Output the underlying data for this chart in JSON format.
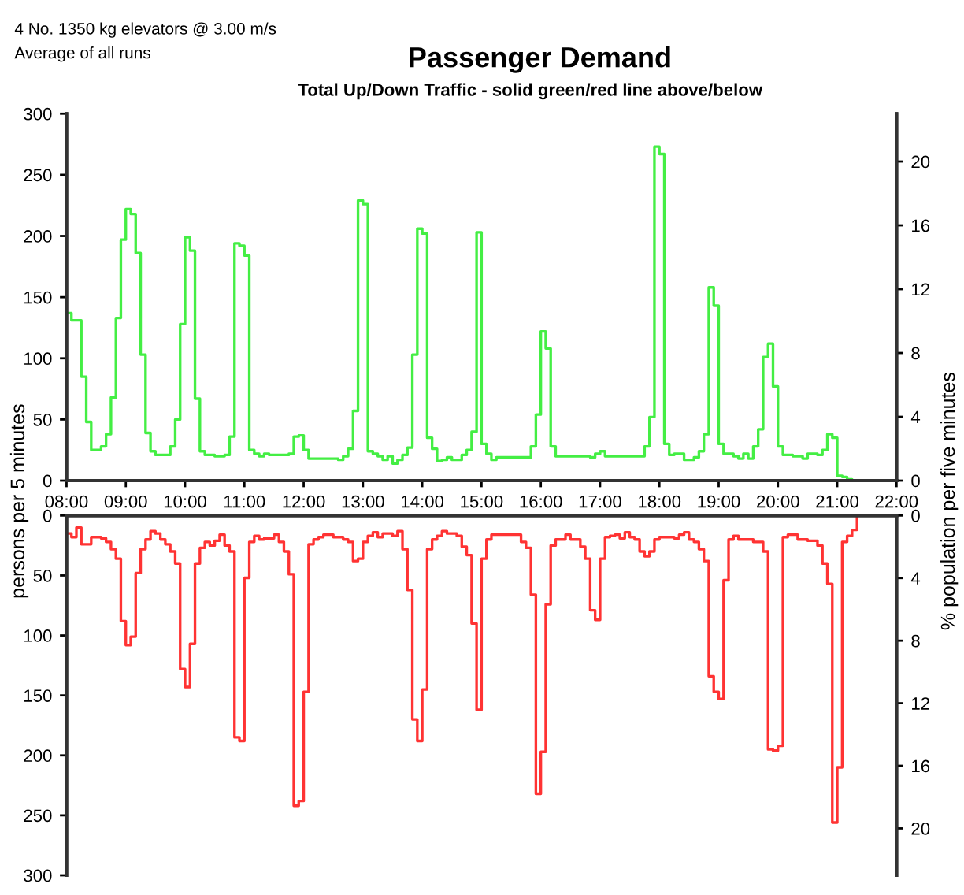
{
  "chart_data": [
    {
      "type": "step",
      "title": "Passenger Demand",
      "subtitle": "Total Up/Down Traffic - solid green/red line above/below",
      "annotations": [
        "4 No. 1350 kg elevators @ 3.00 m/s",
        "Average of all runs"
      ],
      "ylabel": "persons per 5 minutes",
      "y2label": "% population per five minutes",
      "xlim": [
        8,
        22
      ],
      "xticks": [
        {
          "value": 8,
          "label": "08:00"
        },
        {
          "value": 9,
          "label": "09:00"
        },
        {
          "value": 10,
          "label": "10:00"
        },
        {
          "value": 11,
          "label": "11:00"
        },
        {
          "value": 12,
          "label": "12:00"
        },
        {
          "value": 13,
          "label": "13:00"
        },
        {
          "value": 14,
          "label": "14:00"
        },
        {
          "value": 15,
          "label": "15:00"
        },
        {
          "value": 16,
          "label": "16:00"
        },
        {
          "value": 17,
          "label": "17:00"
        },
        {
          "value": 18,
          "label": "18:00"
        },
        {
          "value": 19,
          "label": "19:00"
        },
        {
          "value": 20,
          "label": "20:00"
        },
        {
          "value": 21,
          "label": "21:00"
        },
        {
          "value": 22,
          "label": "22:00"
        }
      ],
      "ylim": [
        0,
        300
      ],
      "yticks": [
        0,
        50,
        100,
        150,
        200,
        250,
        300
      ],
      "y2lim": [
        0,
        23
      ],
      "y2ticks": [
        0,
        4,
        8,
        12,
        16,
        20
      ],
      "grid": false,
      "legend": false,
      "series": [
        {
          "color": "#44ee44",
          "x": [
            8,
            8.0833,
            8.25,
            8.3333,
            8.4167,
            8.5833,
            8.6667,
            8.75,
            8.8333,
            8.9167,
            9,
            9.0833,
            9.1667,
            9.25,
            9.3333,
            9.4167,
            9.5,
            9.75,
            9.8333,
            9.9167,
            10,
            10.0833,
            10.1667,
            10.25,
            10.3333,
            10.5,
            10.6667,
            10.75,
            10.8333,
            10.9167,
            11,
            11.0833,
            11.1667,
            11.25,
            11.3333,
            11.4167,
            11.75,
            11.8333,
            11.9167,
            12,
            12.0833,
            12.5833,
            12.6667,
            12.75,
            12.8333,
            12.9167,
            13,
            13.0833,
            13.1667,
            13.25,
            13.3333,
            13.4167,
            13.5,
            13.5833,
            13.6667,
            13.75,
            13.8333,
            13.9167,
            14,
            14.0833,
            14.1667,
            14.25,
            14.3333,
            14.4167,
            14.5,
            14.6667,
            14.75,
            14.8333,
            14.9167,
            15,
            15.0833,
            15.1667,
            15.25,
            15.8333,
            15.9167,
            16,
            16.0833,
            16.1667,
            16.25,
            16.8333,
            16.9167,
            17,
            17.0833,
            17.75,
            17.8333,
            17.9167,
            18,
            18.0833,
            18.1667,
            18.25,
            18.4167,
            18.5833,
            18.6667,
            18.75,
            18.8333,
            18.9167,
            19,
            19.0833,
            19.1667,
            19.25,
            19.3333,
            19.4167,
            19.5,
            19.5833,
            19.6667,
            19.75,
            19.8333,
            19.9167,
            20,
            20.0833,
            20.25,
            20.4167,
            20.5,
            20.6667,
            20.75,
            20.8333,
            20.9167,
            21,
            21.0833,
            21.1667,
            21.25,
            22
          ],
          "values": [
            137,
            131,
            85,
            48,
            25,
            28,
            38,
            68,
            133,
            197,
            222,
            218,
            186,
            103,
            39,
            24,
            21,
            28,
            50,
            128,
            199,
            188,
            67,
            24,
            21,
            20,
            21,
            36,
            194,
            192,
            184,
            25,
            22,
            20,
            22,
            21,
            22,
            36,
            37,
            25,
            18,
            17,
            20,
            26,
            57,
            229,
            226,
            24,
            22,
            20,
            17,
            20,
            14,
            17,
            21,
            27,
            103,
            206,
            202,
            35,
            26,
            16,
            17,
            19,
            17,
            21,
            25,
            40,
            203,
            30,
            22,
            17,
            19,
            28,
            54,
            122,
            108,
            28,
            20,
            19,
            22,
            24,
            20,
            28,
            52,
            273,
            267,
            30,
            21,
            22,
            17,
            19,
            24,
            38,
            158,
            143,
            30,
            22,
            22,
            20,
            18,
            22,
            18,
            28,
            42,
            101,
            112,
            77,
            28,
            21,
            20,
            18,
            22,
            21,
            25,
            38,
            35,
            4,
            3,
            1,
            0,
            0
          ]
        }
      ]
    },
    {
      "type": "step",
      "tick_labels": "y",
      "xlim": [
        8,
        22
      ],
      "ylim": [
        300,
        0
      ],
      "yticks": [
        0,
        50,
        100,
        150,
        200,
        250,
        300
      ],
      "y2lim": [
        23,
        0
      ],
      "y2ticks": [
        0,
        4,
        8,
        12,
        16,
        20
      ],
      "grid": false,
      "legend": false,
      "series": [
        {
          "color": "#ff3333",
          "x": [
            8,
            8.0833,
            8.1667,
            8.25,
            8.4167,
            8.5833,
            8.6667,
            8.75,
            8.8333,
            8.9167,
            9,
            9.0833,
            9.1667,
            9.25,
            9.3333,
            9.4167,
            9.5,
            9.5833,
            9.6667,
            9.75,
            9.8333,
            9.9167,
            10,
            10.0833,
            10.1667,
            10.25,
            10.3333,
            10.4167,
            10.5,
            10.5833,
            10.6667,
            10.75,
            10.8333,
            10.9167,
            11,
            11.0833,
            11.1667,
            11.25,
            11.3333,
            11.5,
            11.5833,
            11.6667,
            11.75,
            11.8333,
            11.9167,
            12,
            12.0833,
            12.1667,
            12.25,
            12.3333,
            12.5,
            12.6667,
            12.75,
            12.8333,
            12.9167,
            13,
            13.0833,
            13.1667,
            13.25,
            13.3333,
            13.5,
            13.5833,
            13.6667,
            13.75,
            13.8333,
            13.9167,
            14,
            14.0833,
            14.1667,
            14.25,
            14.3333,
            14.4167,
            14.5833,
            14.6667,
            14.75,
            14.8333,
            14.9167,
            15,
            15.0833,
            15.1667,
            15.6667,
            15.75,
            15.8333,
            15.9167,
            16,
            16.0833,
            16.1667,
            16.25,
            16.4167,
            16.5,
            16.6667,
            16.75,
            16.8333,
            16.9167,
            17,
            17.0833,
            17.1667,
            17.25,
            17.3333,
            17.4167,
            17.5,
            17.5833,
            17.6667,
            17.75,
            17.8333,
            17.9167,
            18,
            18.25,
            18.3333,
            18.4167,
            18.5,
            18.5833,
            18.6667,
            18.75,
            18.8333,
            18.9167,
            19,
            19.0833,
            19.1667,
            19.25,
            19.3333,
            19.5,
            19.5833,
            19.75,
            19.8333,
            19.9167,
            20,
            20.0833,
            20.1667,
            20.3333,
            20.5,
            20.6667,
            20.75,
            20.8333,
            20.9167,
            21,
            21.0833,
            21.1667,
            21.25,
            21.3333,
            22
          ],
          "values": [
            15,
            18,
            10,
            24,
            18,
            19,
            22,
            28,
            36,
            88,
            108,
            101,
            48,
            28,
            20,
            13,
            15,
            20,
            24,
            30,
            40,
            128,
            143,
            107,
            40,
            27,
            22,
            25,
            21,
            16,
            25,
            30,
            185,
            188,
            52,
            22,
            17,
            20,
            19,
            16,
            22,
            30,
            49,
            242,
            238,
            147,
            24,
            20,
            18,
            16,
            18,
            20,
            22,
            38,
            36,
            22,
            17,
            14,
            18,
            15,
            17,
            13,
            28,
            62,
            170,
            188,
            145,
            28,
            20,
            17,
            13,
            15,
            17,
            26,
            33,
            90,
            162,
            36,
            20,
            16,
            22,
            27,
            66,
            232,
            197,
            74,
            25,
            20,
            16,
            20,
            26,
            36,
            79,
            87,
            36,
            18,
            17,
            16,
            19,
            14,
            18,
            20,
            30,
            34,
            30,
            20,
            18,
            19,
            16,
            14,
            20,
            22,
            28,
            38,
            134,
            147,
            153,
            54,
            20,
            17,
            20,
            20,
            22,
            30,
            195,
            196,
            192,
            18,
            16,
            20,
            21,
            25,
            40,
            57,
            256,
            210,
            22,
            17,
            12,
            0,
            0
          ]
        }
      ]
    }
  ]
}
